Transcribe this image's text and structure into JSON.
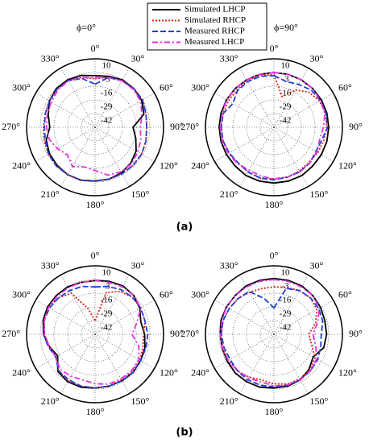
{
  "legend": [
    {
      "name": "Simulated LHCP",
      "color": "#000000",
      "dash": "none"
    },
    {
      "name": "Simulated RHCP",
      "color": "#e0201b",
      "dash": "2,2"
    },
    {
      "name": "Measured RHCP",
      "color": "#1f3fd6",
      "dash": "7,3"
    },
    {
      "name": "Measured LHCP",
      "color": "#e62ee0",
      "dash": "7,3,2,3"
    }
  ],
  "captions": [
    "(a)",
    "(b)"
  ],
  "chart_data": [
    {
      "type": "polar",
      "title": "ϕ=0°",
      "theta": [
        0,
        15,
        30,
        45,
        60,
        75,
        90,
        105,
        120,
        135,
        150,
        165,
        180,
        195,
        210,
        225,
        240,
        255,
        270,
        285,
        300,
        315,
        330,
        345
      ],
      "rlim": [
        -55,
        10
      ],
      "rticks": [
        10,
        -3,
        -16,
        -29,
        -42
      ],
      "thetaticks": [
        {
          "value": 0,
          "label": "0°"
        },
        {
          "value": 30,
          "label": "30°"
        },
        {
          "value": 60,
          "label": "60°"
        },
        {
          "value": 90,
          "label": "90°"
        },
        {
          "value": 120,
          "label": "120°"
        },
        {
          "value": 150,
          "label": "150°"
        },
        {
          "value": 180,
          "label": "180°"
        },
        {
          "value": 210,
          "label": "210°"
        },
        {
          "value": 240,
          "label": "240°"
        },
        {
          "value": 270,
          "label": "270°"
        },
        {
          "value": 300,
          "label": "300°"
        },
        {
          "value": 330,
          "label": "330°"
        }
      ],
      "grid": true,
      "series": [
        {
          "values": [
            -6,
            -5,
            -3,
            -3,
            -4,
            -7,
            -19,
            -15,
            -10,
            -7,
            -5,
            -4,
            -4,
            -3,
            -3,
            -4,
            -5,
            -7,
            -12,
            -9,
            -5,
            -3,
            -3,
            -4
          ]
        },
        {
          "values": [
            -9,
            -6,
            -4,
            -3,
            -3,
            -5,
            -6,
            -5,
            -4,
            -4,
            -4,
            -4,
            -4,
            -3,
            -3,
            -3,
            -4,
            -5,
            -6,
            -6,
            -5,
            -4,
            -4,
            -6
          ]
        },
        {
          "values": [
            -14,
            -6,
            -4,
            -3,
            -3,
            -5,
            -6,
            -5,
            -4,
            -4,
            -4,
            -4,
            -4,
            -3,
            -3,
            -3,
            -4,
            -6,
            -7,
            -6,
            -5,
            -4,
            -4,
            -7
          ]
        },
        {
          "values": [
            -8,
            -6,
            -4,
            -4,
            -5,
            -9,
            -12,
            -10,
            -8,
            -6,
            -6,
            -8,
            -14,
            -16,
            -12,
            -18,
            -14,
            -10,
            -9,
            -8,
            -7,
            -5,
            -4,
            -6
          ]
        }
      ]
    },
    {
      "type": "polar",
      "title": "ϕ=90°",
      "theta": [
        0,
        15,
        30,
        45,
        60,
        75,
        90,
        105,
        120,
        135,
        150,
        165,
        180,
        195,
        210,
        225,
        240,
        255,
        270,
        285,
        300,
        315,
        330,
        345
      ],
      "rlim": [
        -55,
        10
      ],
      "rticks": [
        10,
        -3,
        -16,
        -29,
        -42
      ],
      "thetaticks": [
        {
          "value": 0,
          "label": "0°"
        },
        {
          "value": 30,
          "label": "30°"
        },
        {
          "value": 60,
          "label": "60°"
        },
        {
          "value": 90,
          "label": "90°"
        },
        {
          "value": 120,
          "label": "120°"
        },
        {
          "value": 150,
          "label": "150°"
        },
        {
          "value": 180,
          "label": "180°"
        },
        {
          "value": 210,
          "label": "210°"
        },
        {
          "value": 240,
          "label": "240°"
        },
        {
          "value": 270,
          "label": "270°"
        },
        {
          "value": 300,
          "label": "300°"
        },
        {
          "value": 330,
          "label": "330°"
        }
      ],
      "grid": true,
      "series": [
        {
          "values": [
            -3,
            -3,
            -3,
            -3,
            -3,
            -3,
            -3,
            -3,
            -3,
            -3,
            -2,
            -2,
            -2,
            -2,
            -2,
            -3,
            -3,
            -3,
            -3,
            -3,
            -3,
            -3,
            -3,
            -3
          ]
        },
        {
          "values": [
            -5,
            -25,
            -14,
            -8,
            -5,
            -4,
            -5,
            -6,
            -7,
            -8,
            -7,
            -6,
            -6,
            -5,
            -6,
            -7,
            -6,
            -5,
            -5,
            -5,
            -5,
            -5,
            -4,
            -4
          ]
        },
        {
          "values": [
            -6,
            -10,
            -8,
            -5,
            -4,
            -4,
            -4,
            -8,
            -9,
            -7,
            -6,
            -6,
            -5,
            -5,
            -6,
            -7,
            -6,
            -5,
            -5,
            -5,
            -10,
            -6,
            -5,
            -5
          ]
        },
        {
          "values": [
            -3,
            -3,
            -3,
            -3,
            -4,
            -5,
            -8,
            -10,
            -8,
            -7,
            -6,
            -6,
            -6,
            -7,
            -8,
            -6,
            -5,
            -4,
            -4,
            -4,
            -3,
            -3,
            -3,
            -3
          ]
        }
      ]
    },
    {
      "type": "polar",
      "theta": [
        0,
        15,
        30,
        45,
        60,
        75,
        90,
        105,
        120,
        135,
        150,
        165,
        180,
        195,
        210,
        225,
        240,
        255,
        270,
        285,
        300,
        315,
        330,
        345
      ],
      "rlim": [
        -55,
        10
      ],
      "rticks": [
        10,
        -3,
        -16,
        -29,
        -42
      ],
      "thetaticks": [
        {
          "value": 0,
          "label": "0°"
        },
        {
          "value": 30,
          "label": "30°"
        },
        {
          "value": 60,
          "label": "60°"
        },
        {
          "value": 90,
          "label": "90°"
        },
        {
          "value": 120,
          "label": "120°"
        },
        {
          "value": 150,
          "label": "150°"
        },
        {
          "value": 180,
          "label": "180°"
        },
        {
          "value": 210,
          "label": "210°"
        },
        {
          "value": 240,
          "label": "240°"
        },
        {
          "value": 270,
          "label": "270°"
        },
        {
          "value": 300,
          "label": "300°"
        },
        {
          "value": 330,
          "label": "330°"
        }
      ],
      "grid": true,
      "series": [
        {
          "values": [
            -4,
            -3,
            -2,
            -3,
            -6,
            -10,
            -8,
            -6,
            -5,
            -4,
            -4,
            -4,
            -4,
            -3,
            -3,
            -5,
            -14,
            -10,
            -6,
            -4,
            -3,
            -3,
            -3,
            -4
          ]
        },
        {
          "values": [
            -42,
            -14,
            -8,
            -5,
            -5,
            -6,
            -9,
            -8,
            -6,
            -5,
            -5,
            -4,
            -4,
            -4,
            -4,
            -6,
            -12,
            -10,
            -7,
            -5,
            -4,
            -6,
            -10,
            -30
          ]
        },
        {
          "values": [
            -10,
            -8,
            -6,
            -5,
            -5,
            -6,
            -5,
            -5,
            -5,
            -4,
            -4,
            -4,
            -4,
            -4,
            -5,
            -6,
            -12,
            -9,
            -6,
            -5,
            -5,
            -6,
            -7,
            -8
          ]
        },
        {
          "values": [
            -4,
            -4,
            -3,
            -3,
            -5,
            -14,
            -20,
            -12,
            -7,
            -6,
            -6,
            -6,
            -8,
            -10,
            -9,
            -8,
            -12,
            -10,
            -7,
            -5,
            -4,
            -4,
            -4,
            -4
          ]
        }
      ]
    },
    {
      "type": "polar",
      "theta": [
        0,
        15,
        30,
        45,
        60,
        75,
        90,
        105,
        120,
        135,
        150,
        165,
        180,
        195,
        210,
        225,
        240,
        255,
        270,
        285,
        300,
        315,
        330,
        345
      ],
      "rlim": [
        -55,
        10
      ],
      "rticks": [
        10,
        -3,
        -16,
        -29,
        -42
      ],
      "thetaticks": [
        {
          "value": 0,
          "label": "0°"
        },
        {
          "value": 30,
          "label": "30°"
        },
        {
          "value": 60,
          "label": "60°"
        },
        {
          "value": 90,
          "label": "90°"
        },
        {
          "value": 120,
          "label": "120°"
        },
        {
          "value": 150,
          "label": "150°"
        },
        {
          "value": 180,
          "label": "180°"
        },
        {
          "value": 210,
          "label": "210°"
        },
        {
          "value": 240,
          "label": "240°"
        },
        {
          "value": 270,
          "label": "270°"
        },
        {
          "value": 300,
          "label": "300°"
        },
        {
          "value": 330,
          "label": "330°"
        }
      ],
      "grid": true,
      "series": [
        {
          "values": [
            -2,
            -2,
            -2,
            -3,
            -4,
            -5,
            -5,
            -6,
            -12,
            -8,
            -5,
            -4,
            -4,
            -3,
            -3,
            -3,
            -4,
            -4,
            -4,
            -3,
            -3,
            -3,
            -2,
            -2
          ]
        },
        {
          "values": [
            -10,
            -9,
            -7,
            -6,
            -8,
            -14,
            -22,
            -18,
            -10,
            -7,
            -6,
            -6,
            -8,
            -10,
            -8,
            -6,
            -5,
            -5,
            -5,
            -5,
            -6,
            -7,
            -9,
            -10
          ]
        },
        {
          "values": [
            -30,
            -10,
            -7,
            -6,
            -6,
            -7,
            -10,
            -9,
            -7,
            -6,
            -5,
            -5,
            -5,
            -5,
            -5,
            -6,
            -7,
            -6,
            -5,
            -5,
            -6,
            -7,
            -8,
            -20
          ]
        },
        {
          "values": [
            -3,
            -3,
            -3,
            -3,
            -5,
            -12,
            -18,
            -14,
            -8,
            -6,
            -5,
            -5,
            -6,
            -8,
            -7,
            -6,
            -5,
            -4,
            -4,
            -4,
            -3,
            -3,
            -3,
            -3
          ]
        }
      ]
    }
  ]
}
